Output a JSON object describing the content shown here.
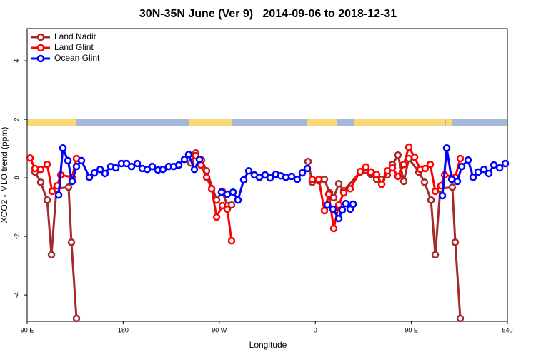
{
  "chart_data": {
    "type": "line",
    "title": "30N-35N June (Ver 9)   2014-09-06 to 2018-12-31",
    "x_label": "Longitude",
    "y_label": "XCO2 - MLO trend (ppm)",
    "xlim": [
      90,
      540
    ],
    "ylim": [
      -4.9,
      5.1
    ],
    "xticks": [
      {
        "value": 90,
        "label": "90 E"
      },
      180,
      {
        "value": 270,
        "label": "90 W"
      },
      {
        "value": 360,
        "label": "0"
      },
      {
        "value": 450,
        "label": "90 E"
      },
      540
    ],
    "yticks": [
      -4,
      -2,
      0,
      2,
      4
    ],
    "legend": "top-left",
    "series": [
      {
        "name": "Land Nadir",
        "color": "#a52a2a",
        "x": [
          97.4,
          102.7,
          108.8,
          112.8,
          117.5,
          128.8,
          131.5,
          136.2,
          null,
          243.4,
          248,
          253.4,
          258.1,
          267.5,
          272.8,
          277.5,
          281.5,
          null,
          353.2,
          357.2,
          363.2,
          368.6,
          373.3,
          377.3,
          382,
          386.7,
          402.1,
          407.4,
          412.1,
          417.5,
          422.2,
          427.5,
          432.2,
          437.5,
          442.9,
          447.6,
          457,
          462.3,
          468.4,
          472.4,
          477.1,
          488.4,
          491.1,
          495.8
        ],
        "values": [
          0.2,
          -0.15,
          -0.76,
          -2.63,
          -0.37,
          -0.32,
          -2.2,
          -4.8,
          null,
          0.51,
          0.85,
          0.61,
          0.24,
          -0.76,
          -0.46,
          -0.95,
          -0.93,
          null,
          0.56,
          -0.15,
          -0.1,
          -0.05,
          -0.51,
          -0.68,
          -0.2,
          -0.44,
          0.2,
          0.27,
          0.12,
          -0.05,
          -0.05,
          0.1,
          0.46,
          0.78,
          -0.12,
          0.66,
          0.2,
          -0.15,
          -0.76,
          -2.63,
          -0.37,
          -0.32,
          -2.2,
          -4.8
        ]
      },
      {
        "name": "Land Glint",
        "color": "#ff0000",
        "x": [
          92.7,
          97.4,
          102.7,
          108.8,
          113.4,
          118.1,
          121.5,
          132.2,
          136.2,
          null,
          248,
          252.7,
          258.1,
          262.8,
          267.5,
          272.8,
          277.5,
          281.5,
          null,
          357.2,
          363.2,
          368.6,
          372.6,
          377.3,
          382,
          386.7,
          392.7,
          402.1,
          407.4,
          412.1,
          417.5,
          422.2,
          427.5,
          432.2,
          437.5,
          442.9,
          447.6,
          453,
          458.3,
          462.9,
          467.7,
          472.4,
          477.7,
          481.1,
          491.1,
          495.8
        ],
        "values": [
          0.68,
          0.32,
          0.29,
          0.46,
          -0.46,
          -0.27,
          0.1,
          0.02,
          0.66,
          null,
          0.76,
          0.44,
          0.02,
          -0.37,
          -1.34,
          -0.95,
          -1.07,
          -2.15,
          null,
          -0.05,
          -0.05,
          -1.12,
          -0.56,
          -1.73,
          -0.93,
          -0.51,
          -0.37,
          0.22,
          0.37,
          0.2,
          0.12,
          -0.22,
          0.24,
          0.34,
          0.05,
          0.46,
          1.05,
          0.71,
          0.29,
          0.32,
          0.46,
          -0.46,
          -0.27,
          0.1,
          0.02,
          0.66
        ]
      },
      {
        "name": "Ocean Glint",
        "color": "#0000ff",
        "x": [
          119.5,
          123.5,
          128.2,
          132.2,
          136.2,
          140.9,
          148.3,
          153,
          158.4,
          163,
          168.4,
          173.1,
          178.4,
          183.1,
          187.8,
          193.1,
          197.8,
          202.5,
          207.2,
          212.5,
          217.2,
          222.6,
          227.3,
          232,
          237.3,
          241.3,
          246.7,
          251.4,
          null,
          272.1,
          277.5,
          282.9,
          287.5,
          292.9,
          297.6,
          302.9,
          307.6,
          313,
          317.7,
          323,
          327.7,
          332.4,
          337.8,
          343.1,
          347.8,
          352.5,
          null,
          371.3,
          376.6,
          382,
          385.3,
          388.7,
          392.7,
          395.4,
          null,
          479.1,
          483.1,
          487.8,
          493.1,
          497.2,
          503.2,
          507.9,
          512.6,
          518,
          522.6,
          527.3,
          532.7,
          538
        ],
        "values": [
          -0.59,
          1.02,
          0.59,
          -0.12,
          0.39,
          0.59,
          0.02,
          0.17,
          0.29,
          0.15,
          0.39,
          0.34,
          0.49,
          0.49,
          0.39,
          0.49,
          0.32,
          0.29,
          0.39,
          0.27,
          0.29,
          0.39,
          0.39,
          0.44,
          0.63,
          0.8,
          0.29,
          0.63,
          null,
          -0.49,
          -0.56,
          -0.49,
          -0.76,
          -0.07,
          0.24,
          0.1,
          0.02,
          0.1,
          0,
          0.12,
          0.07,
          0.02,
          0.05,
          -0.05,
          0.17,
          0.32,
          null,
          -0.93,
          -1.07,
          -1.39,
          -1.1,
          -0.88,
          -1.07,
          -0.9,
          null,
          -0.61,
          1.02,
          -0.05,
          -0.12,
          0.39,
          0.61,
          0.02,
          0.2,
          0.29,
          0.15,
          0.44,
          0.34,
          0.49
        ]
      }
    ]
  }
}
